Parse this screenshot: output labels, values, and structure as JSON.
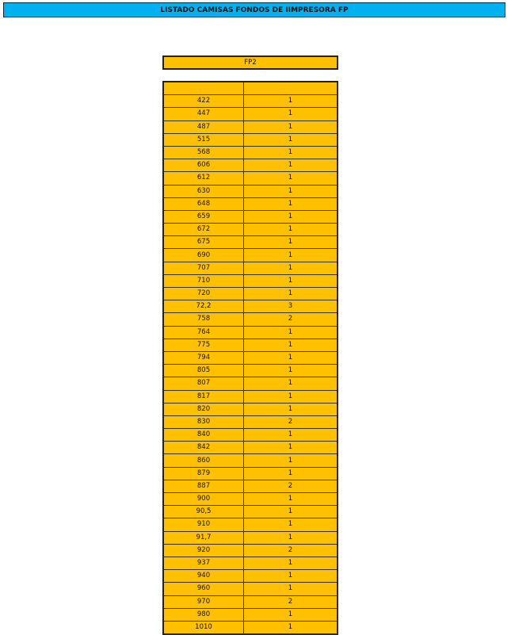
{
  "title": "LISTADO CAMISAS FONDOS DE IIMPRESORA FP",
  "section": "FP2",
  "header": [
    "",
    ""
  ],
  "rows": [
    [
      "422",
      "1"
    ],
    [
      "447",
      "1"
    ],
    [
      "487",
      "1"
    ],
    [
      "515",
      "1"
    ],
    [
      "568",
      "1"
    ],
    [
      "606",
      "1"
    ],
    [
      "612",
      "1"
    ],
    [
      "630",
      "1"
    ],
    [
      "648",
      "1"
    ],
    [
      "659",
      "1"
    ],
    [
      "672",
      "1"
    ],
    [
      "675",
      "1"
    ],
    [
      "690",
      "1"
    ],
    [
      "707",
      "1"
    ],
    [
      "710",
      "1"
    ],
    [
      "720",
      "1"
    ],
    [
      "72,2",
      "3"
    ],
    [
      "758",
      "2"
    ],
    [
      "764",
      "1"
    ],
    [
      "775",
      "1"
    ],
    [
      "794",
      "1"
    ],
    [
      "805",
      "1"
    ],
    [
      "807",
      "1"
    ],
    [
      "817",
      "1"
    ],
    [
      "820",
      "1"
    ],
    [
      "830",
      "2"
    ],
    [
      "840",
      "1"
    ],
    [
      "842",
      "1"
    ],
    [
      "860",
      "1"
    ],
    [
      "879",
      "1"
    ],
    [
      "887",
      "2"
    ],
    [
      "900",
      "1"
    ],
    [
      "90,5",
      "1"
    ],
    [
      "910",
      "1"
    ],
    [
      "91,7",
      "1"
    ],
    [
      "920",
      "2"
    ],
    [
      "937",
      "1"
    ],
    [
      "940",
      "1"
    ],
    [
      "960",
      "1"
    ],
    [
      "970",
      "2"
    ],
    [
      "980",
      "1"
    ],
    [
      "1010",
      "1"
    ]
  ],
  "colors": {
    "title_bg": "#00b0f0",
    "cell_bg": "#ffc000"
  }
}
